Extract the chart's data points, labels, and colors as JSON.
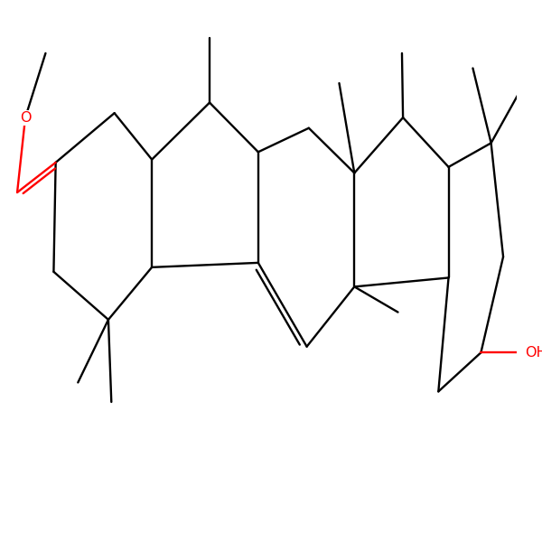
{
  "bg": "#ffffff",
  "blk": "#000000",
  "red": "#ff0000",
  "lw": 1.7,
  "dlw": 1.7,
  "fs": 11.0
}
